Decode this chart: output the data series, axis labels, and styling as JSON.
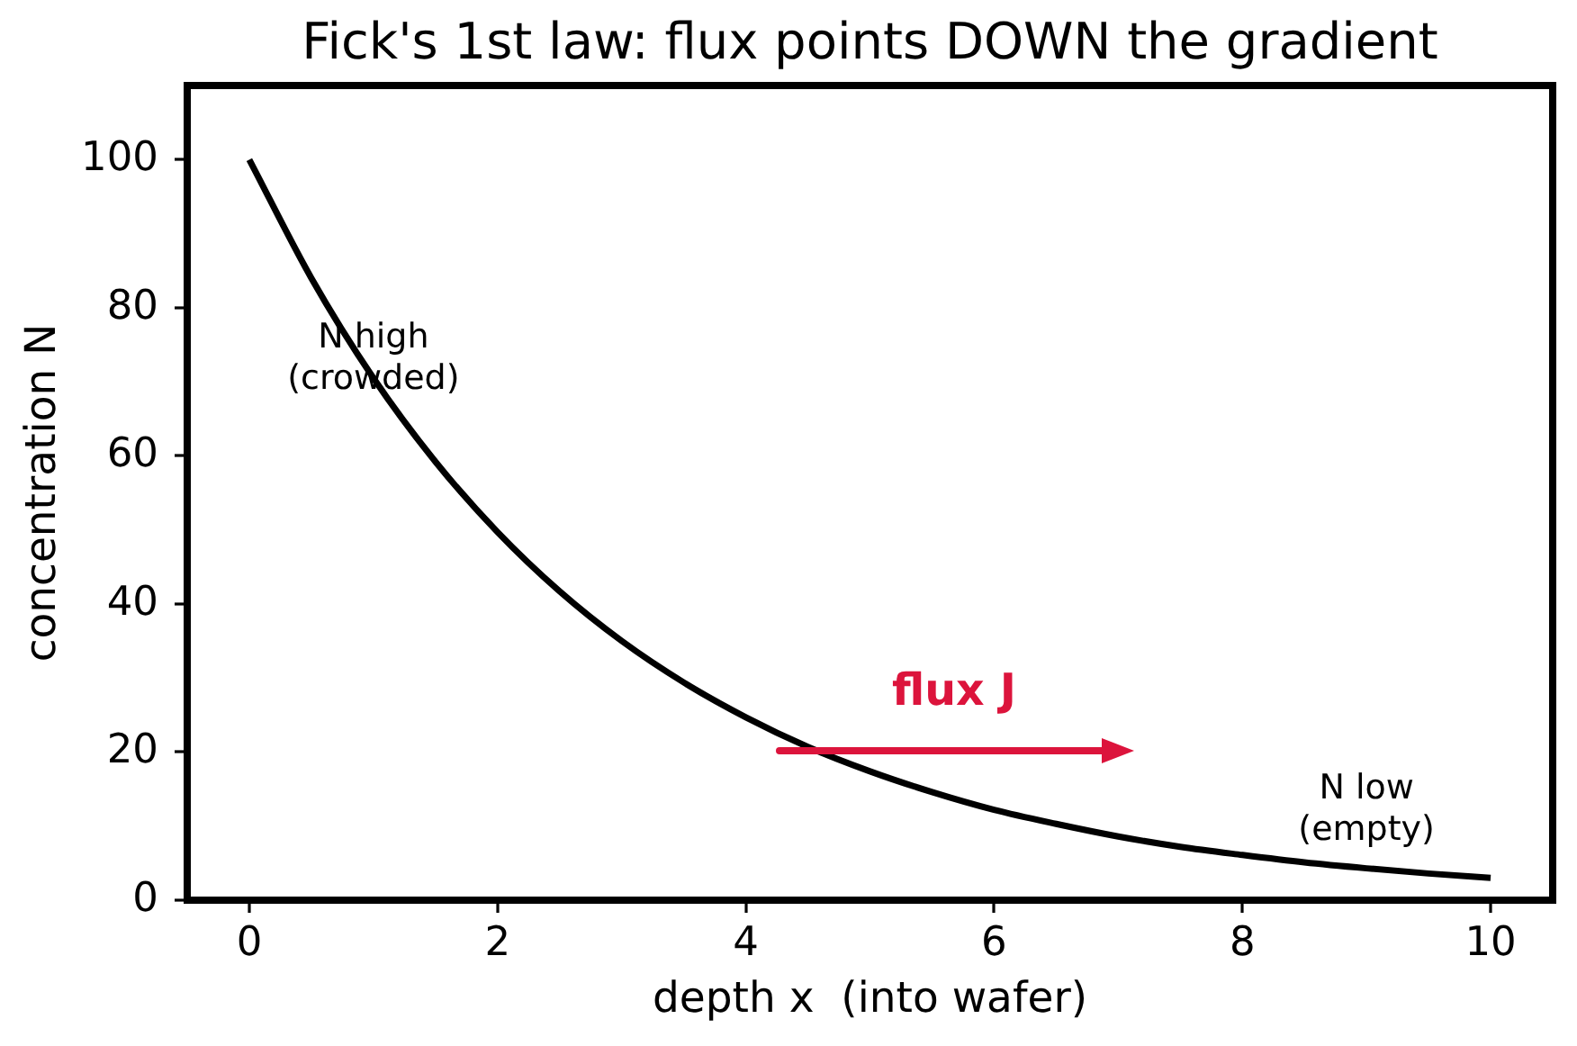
{
  "chart_data": {
    "type": "line",
    "title": "Fick's 1st law: flux points DOWN the gradient",
    "xlabel": "depth x  (into wafer)",
    "ylabel": "concentration N",
    "x": [
      0,
      0.5,
      1,
      1.5,
      2,
      2.5,
      3,
      3.5,
      4,
      4.5,
      5,
      5.5,
      6,
      6.5,
      7,
      7.5,
      8,
      8.5,
      9,
      9.5,
      10
    ],
    "series": [
      {
        "color": "#000000",
        "values": [
          100,
          84,
          70.5,
          59.2,
          49.7,
          41.7,
          35,
          29.4,
          24.7,
          20.7,
          17.4,
          14.6,
          12.2,
          10.3,
          8.6,
          7.2,
          6.1,
          5.1,
          4.3,
          3.6,
          3.0
        ]
      }
    ],
    "xlim": [
      -0.5,
      10.5
    ],
    "ylim": [
      0,
      110
    ],
    "xticks": [
      0,
      2,
      4,
      6,
      8,
      10
    ],
    "yticks": [
      0,
      20,
      40,
      60,
      80,
      100
    ],
    "grid": false,
    "legend": false,
    "marker": "none",
    "line_style": "solid",
    "annotations": [
      {
        "text": "N high\n(crowded)",
        "x": 1,
        "y": 73
      },
      "N low\n(empty)",
      "flux J"
    ]
  }
}
